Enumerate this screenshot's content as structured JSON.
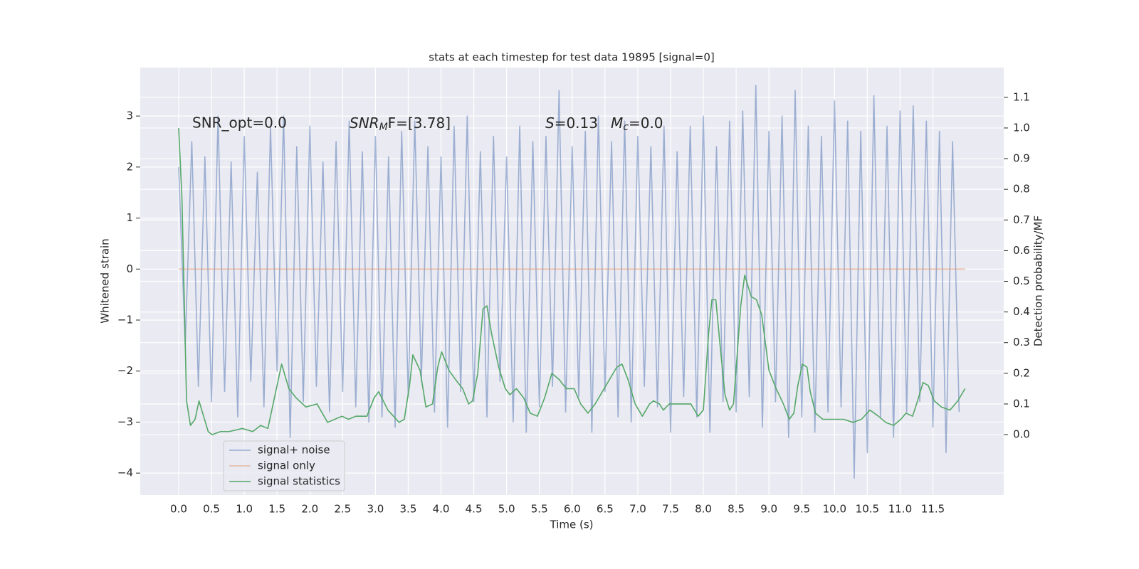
{
  "chart_data": {
    "type": "line",
    "title": "stats at each timestep for test data 19895 [signal=0]",
    "xlabel": "Time (s)",
    "ylabel": "Whitened strain",
    "y2label": "Detection probability/MF",
    "annotations": {
      "snr_opt": "SNR_opt=0.0",
      "snr_mf": {
        "base": "SNR",
        "sub": "M",
        "rest": "F=[3.78]"
      },
      "s": {
        "base": "S",
        "rest": "=0.13"
      },
      "mc": {
        "base": "M",
        "sub": "c",
        "rest": "=0.0"
      }
    },
    "xlim": [
      -0.586,
      12.58
    ],
    "xticks": [
      {
        "value": 0,
        "label": "0.0"
      },
      0.5,
      {
        "value": 1,
        "label": "1.0"
      },
      1.5,
      {
        "value": 2,
        "label": "2.0"
      },
      2.5,
      {
        "value": 3,
        "label": "3.0"
      },
      3.5,
      {
        "value": 4,
        "label": "4.0"
      },
      4.5,
      {
        "value": 5,
        "label": "5.0"
      },
      5.5,
      {
        "value": 6,
        "label": "6.0"
      },
      6.5,
      {
        "value": 7,
        "label": "7.0"
      },
      7.5,
      {
        "value": 8,
        "label": "8.0"
      },
      8.5,
      {
        "value": 9,
        "label": "9.0"
      },
      9.5,
      {
        "value": 10,
        "label": "10.0"
      },
      10.5,
      {
        "value": 11,
        "label": "11.0"
      },
      11.5
    ],
    "ylim": [
      -4.43,
      3.95
    ],
    "yticks": [
      {
        "value": -4,
        "label": "−4"
      },
      {
        "value": -3,
        "label": "−3"
      },
      {
        "value": -2,
        "label": "−2"
      },
      {
        "value": -1,
        "label": "−1"
      },
      0,
      1,
      2,
      3
    ],
    "y2lim": [
      -0.197,
      1.197
    ],
    "y2ticks": [
      {
        "value": 0,
        "label": "0.0"
      },
      0.1,
      0.2,
      0.3,
      0.4,
      0.5,
      0.6,
      0.7,
      0.8,
      0.9,
      {
        "value": 1,
        "label": "1.0"
      },
      1.1
    ],
    "grid": true,
    "background": "#eaeaf2",
    "legend_loc": "lower left",
    "series": [
      {
        "name": "signal+ noise",
        "color": "#4c72b0",
        "alpha": 0.5,
        "x": [
          0,
          0.1,
          0.2,
          0.3,
          0.4,
          0.5,
          0.6,
          0.7,
          0.8,
          0.9,
          1,
          1.1,
          1.2,
          1.3,
          1.4,
          1.5,
          1.6,
          1.7,
          1.8,
          1.9,
          2,
          2.1,
          2.2,
          2.3,
          2.4,
          2.5,
          2.6,
          2.7,
          2.8,
          2.9,
          3,
          3.1,
          3.2,
          3.3,
          3.4,
          3.5,
          3.6,
          3.7,
          3.8,
          3.9,
          4,
          4.1,
          4.2,
          4.3,
          4.4,
          4.5,
          4.6,
          4.7,
          4.8,
          4.9,
          5,
          5.1,
          5.2,
          5.3,
          5.4,
          5.5,
          5.6,
          5.7,
          5.8,
          5.9,
          6,
          6.1,
          6.2,
          6.3,
          6.4,
          6.5,
          6.6,
          6.7,
          6.8,
          6.9,
          7,
          7.1,
          7.2,
          7.3,
          7.4,
          7.5,
          7.6,
          7.7,
          7.8,
          7.9,
          8,
          8.1,
          8.2,
          8.3,
          8.4,
          8.5,
          8.6,
          8.7,
          8.8,
          8.9,
          9,
          9.1,
          9.2,
          9.3,
          9.4,
          9.5,
          9.6,
          9.7,
          9.8,
          9.9,
          10,
          10.1,
          10.2,
          10.3,
          10.4,
          10.5,
          10.6,
          10.7,
          10.8,
          10.9,
          11,
          11.1,
          11.2,
          11.3,
          11.4,
          11.5,
          11.6,
          11.7,
          11.8,
          11.9
        ],
        "values": [
          2.0,
          -1.5,
          2.5,
          -2.3,
          2.2,
          -2.6,
          3.0,
          -2.4,
          2.1,
          -2.9,
          2.6,
          -2.2,
          1.9,
          -2.7,
          2.8,
          -2.0,
          3.0,
          -3.3,
          2.4,
          -2.6,
          2.8,
          -2.3,
          2.1,
          -2.8,
          2.5,
          -2.4,
          2.9,
          -2.7,
          2.3,
          -3.0,
          2.6,
          -2.9,
          2.2,
          -3.1,
          2.7,
          -2.5,
          2.9,
          -2.2,
          2.4,
          -2.8,
          2.2,
          -3.1,
          2.8,
          -2.4,
          3.0,
          -2.6,
          2.3,
          -2.9,
          2.6,
          -2.2,
          2.2,
          -3.0,
          2.8,
          -3.2,
          2.5,
          -2.7,
          2.6,
          -2.3,
          3.5,
          -2.8,
          2.4,
          -2.5,
          2.7,
          -3.2,
          3.0,
          -2.4,
          2.5,
          -2.9,
          2.9,
          -3.0,
          2.6,
          -2.3,
          2.4,
          -2.7,
          2.8,
          -3.2,
          2.3,
          -2.5,
          2.8,
          -2.9,
          3.0,
          -3.2,
          2.4,
          -2.6,
          2.9,
          -2.8,
          3.1,
          -2.5,
          3.6,
          -3.1,
          2.7,
          -2.6,
          3.0,
          -3.3,
          3.5,
          -2.9,
          2.8,
          -3.2,
          2.6,
          -2.8,
          3.3,
          -2.7,
          2.9,
          -4.1,
          2.7,
          -3.6,
          3.4,
          -2.9,
          2.8,
          -3.3,
          3.1,
          -2.8,
          3.2,
          -2.6,
          2.9,
          -3.1,
          2.7,
          -3.6,
          2.5,
          -2.8
        ]
      },
      {
        "name": "signal only",
        "color": "#dd8452",
        "alpha": 0.5,
        "x": [
          0,
          11.99
        ],
        "values": [
          0,
          0
        ]
      },
      {
        "name": "signal statistics",
        "color": "#55a868",
        "alpha": 1,
        "axis": "y2",
        "x": [
          0,
          0.05,
          0.12,
          0.18,
          0.25,
          0.31,
          0.38,
          0.45,
          0.51,
          0.64,
          0.77,
          0.97,
          1.13,
          1.25,
          1.36,
          1.45,
          1.57,
          1.68,
          1.79,
          1.94,
          2.11,
          2.27,
          2.38,
          2.49,
          2.59,
          2.7,
          2.87,
          2.98,
          3.05,
          3.19,
          3.36,
          3.44,
          3.52,
          3.57,
          3.68,
          3.77,
          3.87,
          3.95,
          4.01,
          4.12,
          4.22,
          4.33,
          4.42,
          4.48,
          4.56,
          4.64,
          4.7,
          4.77,
          4.88,
          4.98,
          5.05,
          5.15,
          5.26,
          5.36,
          5.47,
          5.58,
          5.69,
          5.8,
          5.91,
          6.03,
          6.13,
          6.24,
          6.35,
          6.46,
          6.57,
          6.68,
          6.76,
          6.85,
          6.96,
          7.07,
          7.18,
          7.24,
          7.33,
          7.39,
          7.48,
          7.59,
          7.7,
          7.81,
          7.92,
          8.0,
          8.08,
          8.13,
          8.19,
          8.26,
          8.33,
          8.4,
          8.46,
          8.57,
          8.63,
          8.73,
          8.81,
          8.89,
          9.0,
          9.11,
          9.22,
          9.31,
          9.38,
          9.44,
          9.51,
          9.58,
          9.63,
          9.71,
          9.82,
          9.98,
          10.14,
          10.28,
          10.41,
          10.54,
          10.67,
          10.78,
          10.9,
          11.01,
          11.09,
          11.19,
          11.28,
          11.35,
          11.43,
          11.52,
          11.63,
          11.76,
          11.88,
          11.99
        ],
        "values": [
          1.0,
          0.77,
          0.11,
          0.03,
          0.05,
          0.11,
          0.06,
          0.01,
          0.0,
          0.01,
          0.01,
          0.02,
          0.01,
          0.03,
          0.02,
          0.11,
          0.23,
          0.15,
          0.12,
          0.09,
          0.1,
          0.04,
          0.05,
          0.06,
          0.05,
          0.06,
          0.06,
          0.12,
          0.14,
          0.08,
          0.04,
          0.05,
          0.16,
          0.26,
          0.21,
          0.09,
          0.1,
          0.22,
          0.27,
          0.21,
          0.18,
          0.15,
          0.1,
          0.11,
          0.2,
          0.41,
          0.42,
          0.33,
          0.22,
          0.15,
          0.13,
          0.15,
          0.12,
          0.07,
          0.06,
          0.12,
          0.2,
          0.18,
          0.15,
          0.15,
          0.1,
          0.07,
          0.1,
          0.14,
          0.18,
          0.22,
          0.23,
          0.18,
          0.1,
          0.06,
          0.1,
          0.11,
          0.1,
          0.08,
          0.1,
          0.1,
          0.1,
          0.1,
          0.06,
          0.08,
          0.33,
          0.44,
          0.44,
          0.28,
          0.13,
          0.08,
          0.1,
          0.42,
          0.52,
          0.45,
          0.44,
          0.39,
          0.21,
          0.15,
          0.1,
          0.05,
          0.07,
          0.16,
          0.23,
          0.22,
          0.14,
          0.07,
          0.05,
          0.05,
          0.05,
          0.04,
          0.05,
          0.08,
          0.06,
          0.04,
          0.03,
          0.05,
          0.07,
          0.06,
          0.12,
          0.17,
          0.16,
          0.11,
          0.09,
          0.08,
          0.11,
          0.15
        ]
      }
    ]
  }
}
